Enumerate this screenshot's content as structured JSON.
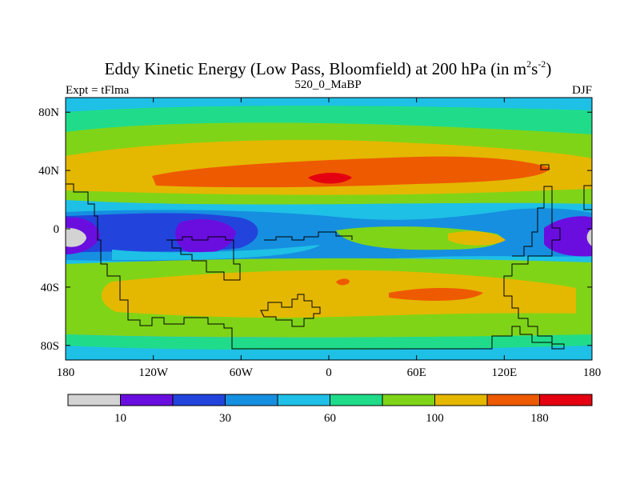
{
  "title": {
    "main": "Eddy Kinetic Energy (Low Pass, Bloomfield) at 200 hPa (in m",
    "sup1": "2",
    "unit_s": "s",
    "sup2": "-2",
    "close": ")"
  },
  "subtitle": {
    "left": "Expt = tFlma",
    "center": "520_0_MaBP",
    "right": "DJF"
  },
  "axes": {
    "y_ticks": [
      "80N",
      "40N",
      "0",
      "40S",
      "80S"
    ],
    "y_values": [
      80,
      40,
      0,
      -40,
      -80
    ],
    "x_ticks": [
      "180",
      "120W",
      "60W",
      "0",
      "60E",
      "120E",
      "180"
    ],
    "x_values": [
      -180,
      -120,
      -60,
      0,
      60,
      120,
      180
    ]
  },
  "colorbar": {
    "colors": [
      "#d3d3d3",
      "#6a0ee0",
      "#2244dd",
      "#168fe0",
      "#1ec0e6",
      "#20dc8a",
      "#80d418",
      "#e4b800",
      "#ee5a00",
      "#e40010"
    ],
    "labels": [
      {
        "text": "10",
        "boundary": 1
      },
      {
        "text": "30",
        "boundary": 3
      },
      {
        "text": "60",
        "boundary": 5
      },
      {
        "text": "100",
        "boundary": 7
      },
      {
        "text": "180",
        "boundary": 9
      }
    ]
  },
  "chart_data": {
    "type": "heatmap",
    "title": "Eddy Kinetic Energy (Low Pass, Bloomfield) at 200 hPa (in m^2 s^-2)",
    "level_hPa": 200,
    "experiment": "tFlma",
    "case": "520_0_MaBP",
    "season": "DJF",
    "xlim": [
      -180,
      180
    ],
    "ylim": [
      -90,
      90
    ],
    "contour_levels_labeled": [
      10,
      30,
      60,
      100,
      180
    ],
    "n_color_bins": 10,
    "zonal_bands_approx": [
      {
        "lat_range": [
          70,
          90
        ],
        "level_bin": 4
      },
      {
        "lat_range": [
          55,
          70
        ],
        "level_bin": 5
      },
      {
        "lat_range": [
          30,
          55
        ],
        "level_bin": 7
      },
      {
        "lat_range": [
          10,
          30
        ],
        "level_bin": 5
      },
      {
        "lat_range": [
          -15,
          10
        ],
        "level_bin": 3
      },
      {
        "lat_range": [
          -35,
          -15
        ],
        "level_bin": 5
      },
      {
        "lat_range": [
          -55,
          -35
        ],
        "level_bin": 7
      },
      {
        "lat_range": [
          -75,
          -55
        ],
        "level_bin": 6
      },
      {
        "lat_range": [
          -90,
          -75
        ],
        "level_bin": 4
      }
    ]
  }
}
